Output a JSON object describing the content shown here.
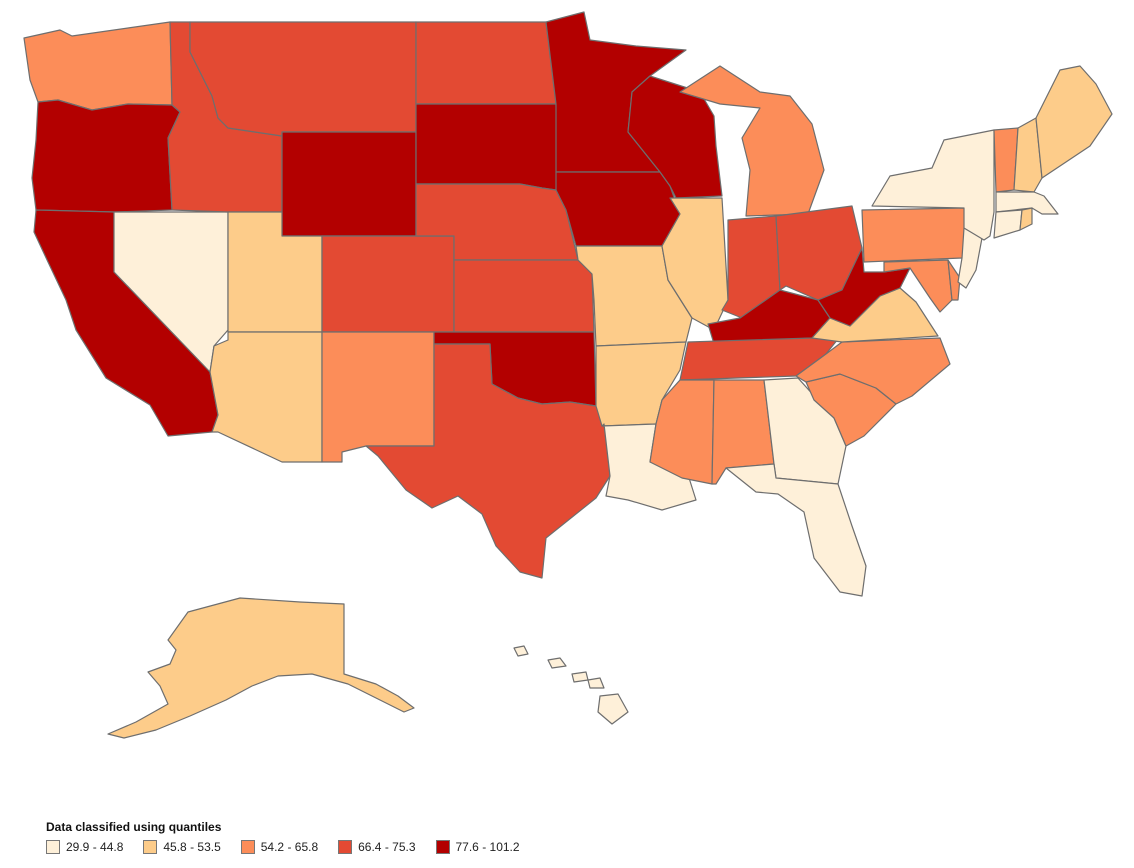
{
  "legend": {
    "title": "Data classified using quantiles",
    "classes": [
      {
        "label": "29.9 - 44.8",
        "color": "#fef0d9"
      },
      {
        "label": "45.8 - 53.5",
        "color": "#fdcc8a"
      },
      {
        "label": "54.2 - 65.8",
        "color": "#fc8d59"
      },
      {
        "label": "66.4 - 75.3",
        "color": "#e34a33"
      },
      {
        "label": "77.6 - 101.2",
        "color": "#b30000"
      }
    ]
  },
  "states": [
    {
      "id": "WA",
      "class": 2
    },
    {
      "id": "OR",
      "class": 4
    },
    {
      "id": "CA",
      "class": 4
    },
    {
      "id": "NV",
      "class": 0
    },
    {
      "id": "ID",
      "class": 3
    },
    {
      "id": "MT",
      "class": 3
    },
    {
      "id": "WY",
      "class": 4
    },
    {
      "id": "UT",
      "class": 1
    },
    {
      "id": "AZ",
      "class": 1
    },
    {
      "id": "CO",
      "class": 3
    },
    {
      "id": "NM",
      "class": 2
    },
    {
      "id": "ND",
      "class": 3
    },
    {
      "id": "SD",
      "class": 4
    },
    {
      "id": "NE",
      "class": 3
    },
    {
      "id": "KS",
      "class": 3
    },
    {
      "id": "OK",
      "class": 4
    },
    {
      "id": "TX",
      "class": 3
    },
    {
      "id": "MN",
      "class": 4
    },
    {
      "id": "IA",
      "class": 4
    },
    {
      "id": "MO",
      "class": 1
    },
    {
      "id": "AR",
      "class": 1
    },
    {
      "id": "LA",
      "class": 0
    },
    {
      "id": "WI",
      "class": 4
    },
    {
      "id": "IL",
      "class": 1
    },
    {
      "id": "MI",
      "class": 2
    },
    {
      "id": "IN",
      "class": 3
    },
    {
      "id": "OH",
      "class": 3
    },
    {
      "id": "KY",
      "class": 4
    },
    {
      "id": "TN",
      "class": 3
    },
    {
      "id": "MS",
      "class": 2
    },
    {
      "id": "AL",
      "class": 2
    },
    {
      "id": "GA",
      "class": 0
    },
    {
      "id": "FL",
      "class": 0
    },
    {
      "id": "SC",
      "class": 2
    },
    {
      "id": "NC",
      "class": 2
    },
    {
      "id": "VA",
      "class": 1
    },
    {
      "id": "WV",
      "class": 4
    },
    {
      "id": "PA",
      "class": 2
    },
    {
      "id": "NY",
      "class": 0
    },
    {
      "id": "VT",
      "class": 2
    },
    {
      "id": "NH",
      "class": 1
    },
    {
      "id": "ME",
      "class": 1
    },
    {
      "id": "MA",
      "class": 0
    },
    {
      "id": "CT",
      "class": 0
    },
    {
      "id": "RI",
      "class": 1
    },
    {
      "id": "NJ",
      "class": 0
    },
    {
      "id": "DE",
      "class": 2
    },
    {
      "id": "MD",
      "class": 2
    },
    {
      "id": "AK",
      "class": 1
    },
    {
      "id": "HI",
      "class": 0
    }
  ]
}
